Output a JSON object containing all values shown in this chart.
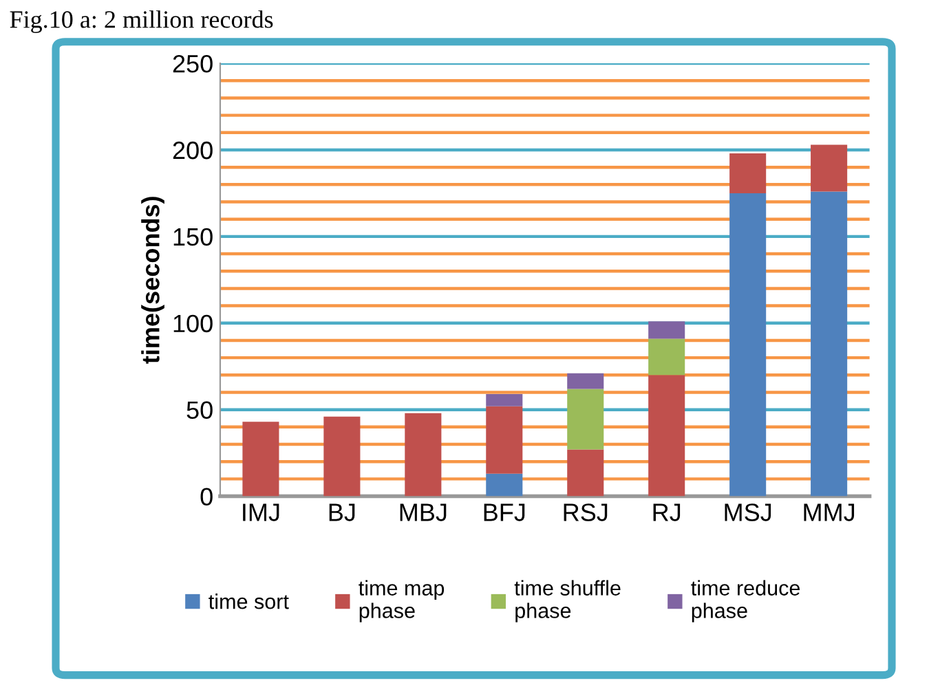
{
  "chart_data": {
    "type": "bar",
    "stacked": true,
    "title": "Fig.10 a: 2 million records",
    "ylabel": "time(seconds)",
    "categories": [
      "IMJ",
      "BJ",
      "MBJ",
      "BFJ",
      "RSJ",
      "RJ",
      "MSJ",
      "MMJ"
    ],
    "series": [
      {
        "name": "time sort",
        "color": "#4f81bd",
        "values": [
          null,
          null,
          null,
          13,
          null,
          null,
          175,
          176
        ]
      },
      {
        "name": "time map phase",
        "color": "#c0504d",
        "values": [
          43,
          46,
          48,
          39,
          27,
          70,
          23,
          27
        ]
      },
      {
        "name": "time shuffle phase",
        "color": "#9bbb59",
        "values": [
          null,
          null,
          null,
          null,
          35,
          21,
          null,
          null
        ]
      },
      {
        "name": "time reduce phase",
        "color": "#8064a2",
        "values": [
          null,
          null,
          null,
          7,
          9,
          10,
          null,
          null
        ]
      }
    ],
    "ylim": [
      0,
      250
    ],
    "yticks": [
      0,
      {
        "value": 10,
        "label": null
      },
      {
        "value": 20,
        "label": null
      },
      {
        "value": 30,
        "label": null
      },
      {
        "value": 40,
        "label": null
      },
      50,
      {
        "value": 60,
        "label": null
      },
      {
        "value": 70,
        "label": null
      },
      {
        "value": 80,
        "label": null
      },
      {
        "value": 90,
        "label": null
      },
      100,
      {
        "value": 110,
        "label": null
      },
      {
        "value": 120,
        "label": null
      },
      {
        "value": 130,
        "label": null
      },
      {
        "value": 140,
        "label": null
      },
      150,
      {
        "value": 160,
        "label": null
      },
      {
        "value": 170,
        "label": null
      },
      {
        "value": 180,
        "label": null
      },
      {
        "value": 190,
        "label": null
      },
      200,
      {
        "value": 210,
        "label": null
      },
      {
        "value": 220,
        "label": null
      },
      {
        "value": 230,
        "label": null
      },
      {
        "value": 240,
        "label": null
      },
      250
    ],
    "grid": "y",
    "legend": "bottom"
  }
}
